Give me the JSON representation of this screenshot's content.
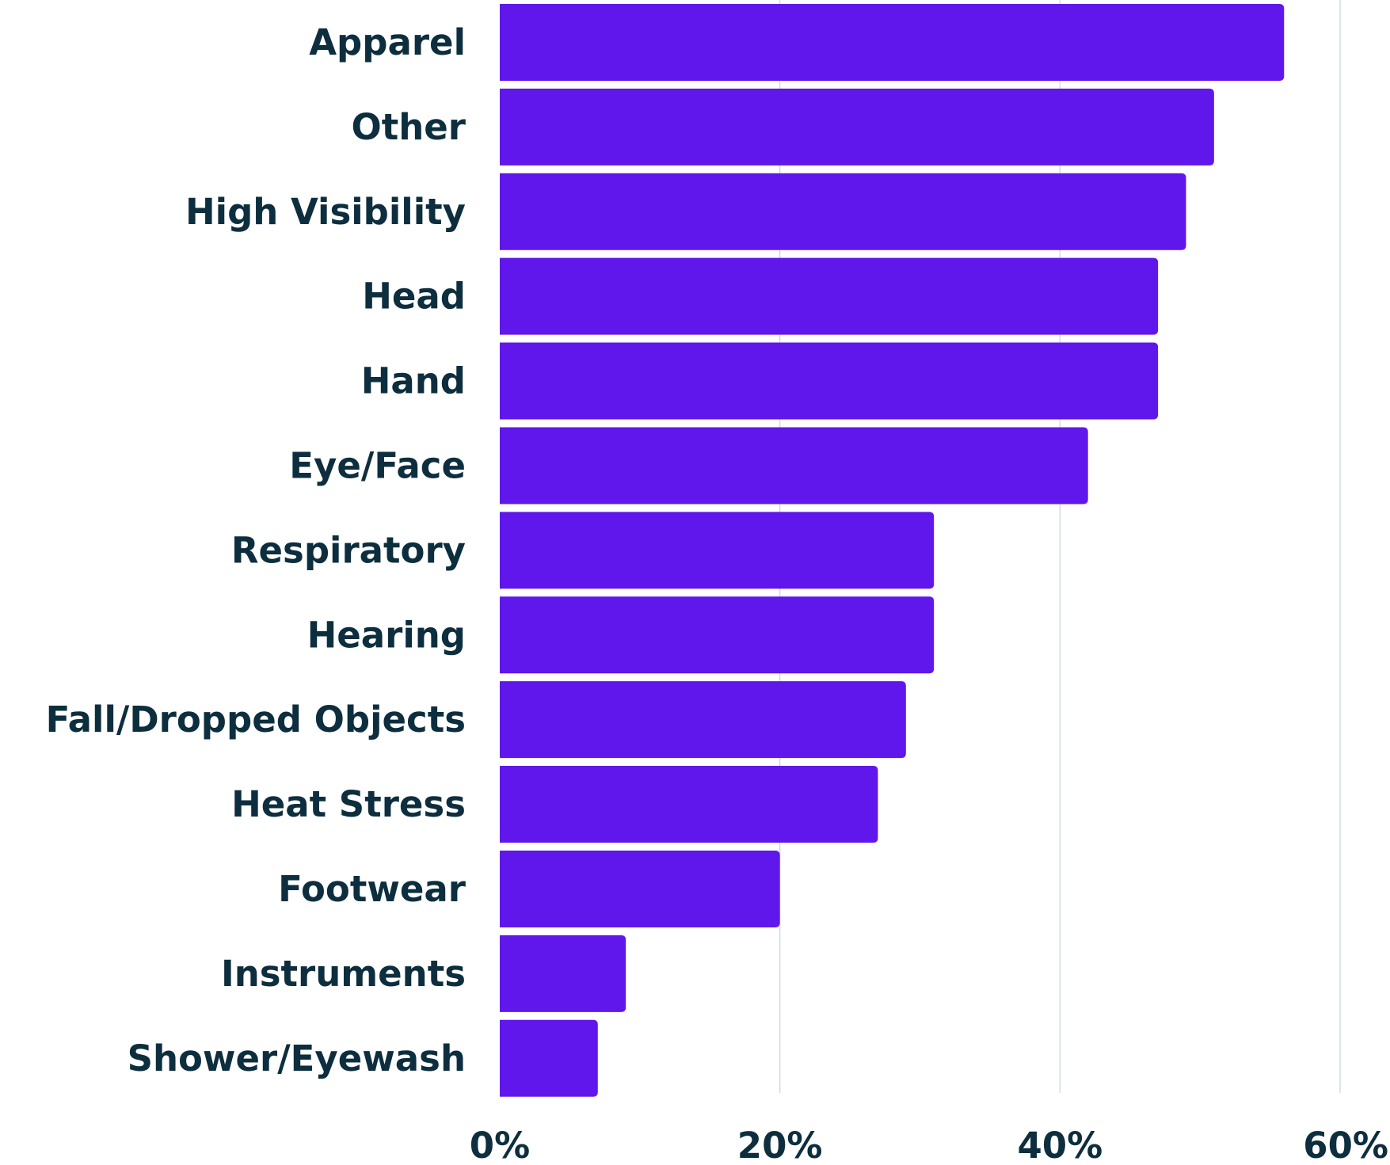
{
  "chart_data": {
    "type": "bar",
    "orientation": "horizontal",
    "categories": [
      "Apparel",
      "Other",
      "High Visibility",
      "Head",
      "Hand",
      "Eye/Face",
      "Respiratory",
      "Hearing",
      "Fall/Dropped Objects",
      "Heat Stress",
      "Footwear",
      "Instruments",
      "Shower/Eyewash"
    ],
    "values": [
      56,
      51,
      49,
      47,
      47,
      42,
      31,
      31,
      29,
      27,
      20,
      9,
      7
    ],
    "unit": "%",
    "title": "",
    "xlabel": "",
    "ylabel": "",
    "xlim": [
      0,
      60
    ],
    "xticks": [
      "0%",
      "20%",
      "40%",
      "60%"
    ],
    "xtick_values": [
      0,
      20,
      40,
      60
    ],
    "grid": "vertical",
    "legend": "none",
    "bar_color": "#5f17eb",
    "text_color": "#0d2e3e",
    "grid_color": "#c9d7df"
  }
}
